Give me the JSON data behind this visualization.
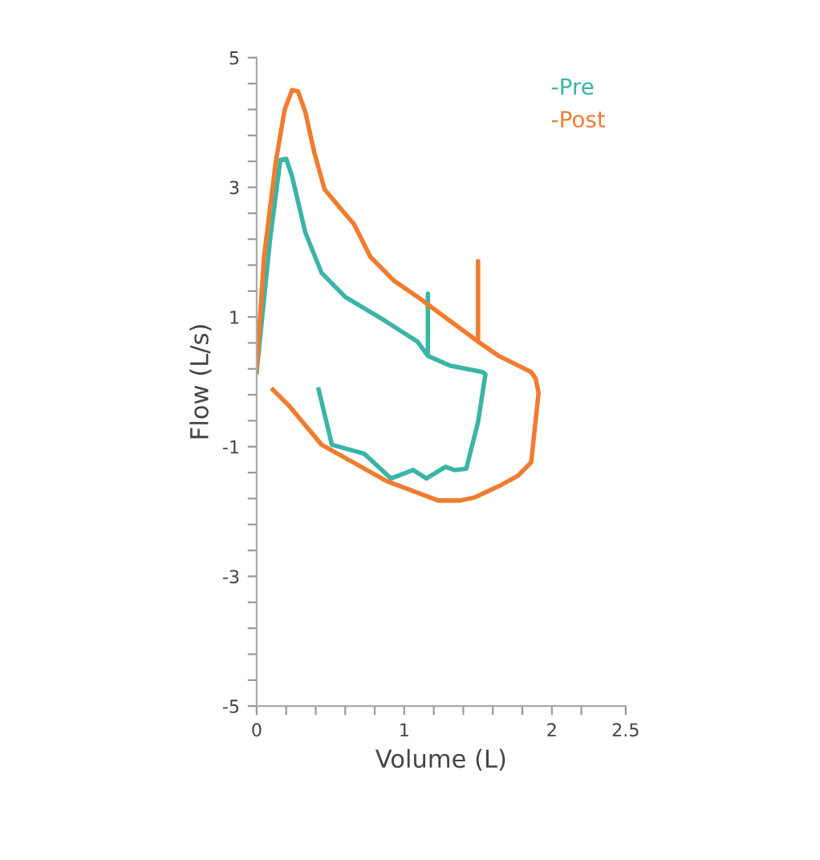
{
  "chart_data": {
    "type": "line",
    "xlabel": "Volume (L)",
    "ylabel": "Flow (L/s)",
    "legend": "top right",
    "grid": false,
    "marker": "none",
    "line_style": "solid",
    "xlim": [
      0,
      2.5
    ],
    "ylim": [
      -5,
      5
    ],
    "xticks": [
      0,
      {
        "value": 0.2,
        "label": null
      },
      {
        "value": 0.4,
        "label": null
      },
      {
        "value": 0.6,
        "label": null
      },
      {
        "value": 0.8,
        "label": null
      },
      1,
      {
        "value": 1.2,
        "label": null
      },
      {
        "value": 1.4,
        "label": null
      },
      {
        "value": 1.6,
        "label": null
      },
      {
        "value": 1.8,
        "label": null
      },
      2,
      {
        "value": 2.2,
        "label": null
      },
      {
        "value": 2.5,
        "label": "2.5"
      }
    ],
    "yticks": [
      -5,
      {
        "value": -4.6,
        "label": null
      },
      {
        "value": -4.2,
        "label": null
      },
      {
        "value": -3.8,
        "label": null
      },
      {
        "value": -3.4,
        "label": null
      },
      -3,
      {
        "value": -2.6,
        "label": null
      },
      {
        "value": -2.2,
        "label": null
      },
      {
        "value": -1.8,
        "label": null
      },
      {
        "value": -1.4,
        "label": null
      },
      -1,
      {
        "value": -0.6,
        "label": null
      },
      {
        "value": -0.2,
        "label": null
      },
      {
        "value": 0.2,
        "label": null
      },
      {
        "value": 0.6,
        "label": null
      },
      1,
      {
        "value": 1.4,
        "label": null
      },
      {
        "value": 1.8,
        "label": null
      },
      {
        "value": 2.2,
        "label": null
      },
      {
        "value": 2.6,
        "label": null
      },
      3,
      {
        "value": 3.4,
        "label": null
      },
      {
        "value": 3.8,
        "label": null
      },
      {
        "value": 4.2,
        "label": null
      },
      {
        "value": 4.6,
        "label": null
      },
      5
    ],
    "series": [
      {
        "name": "-Pre",
        "color": "#3bb5a5",
        "x": [
          0,
          0.09,
          0.16,
          0.2,
          0.24,
          0.33,
          0.44,
          0.6,
          0.87,
          1.09,
          1.16,
          1.16,
          1.16,
          1.31,
          1.53,
          1.55,
          1.5,
          1.42,
          1.34,
          1.28,
          1.15,
          1.06,
          0.91,
          0.73,
          0.51,
          0.42
        ],
        "values": [
          0.15,
          2.18,
          3.42,
          3.44,
          3.17,
          2.3,
          1.68,
          1.31,
          0.94,
          0.62,
          0.4,
          1.36,
          0.4,
          0.25,
          0.15,
          0.12,
          -0.62,
          -1.34,
          -1.36,
          -1.31,
          -1.49,
          -1.36,
          -1.49,
          -1.11,
          -0.97,
          -0.12
        ]
      },
      {
        "name": "-Post",
        "color": "#f07c30",
        "x": [
          0,
          0.05,
          0.13,
          0.19,
          0.24,
          0.28,
          0.33,
          0.39,
          0.46,
          0.57,
          0.66,
          0.77,
          0.93,
          1.09,
          1.31,
          1.5,
          1.5,
          1.5,
          1.64,
          1.86,
          1.89,
          1.91,
          1.86,
          1.77,
          1.64,
          1.48,
          1.38,
          1.23,
          0.88,
          0.44,
          0.22,
          0.11
        ],
        "values": [
          0.2,
          1.93,
          3.4,
          4.2,
          4.5,
          4.48,
          4.16,
          3.54,
          2.97,
          2.67,
          2.43,
          1.93,
          1.56,
          1.31,
          0.94,
          0.62,
          1.86,
          0.62,
          0.4,
          0.15,
          0.05,
          -0.17,
          -1.24,
          -1.45,
          -1.61,
          -1.78,
          -1.83,
          -1.83,
          -1.53,
          -0.97,
          -0.37,
          -0.12
        ]
      }
    ]
  }
}
